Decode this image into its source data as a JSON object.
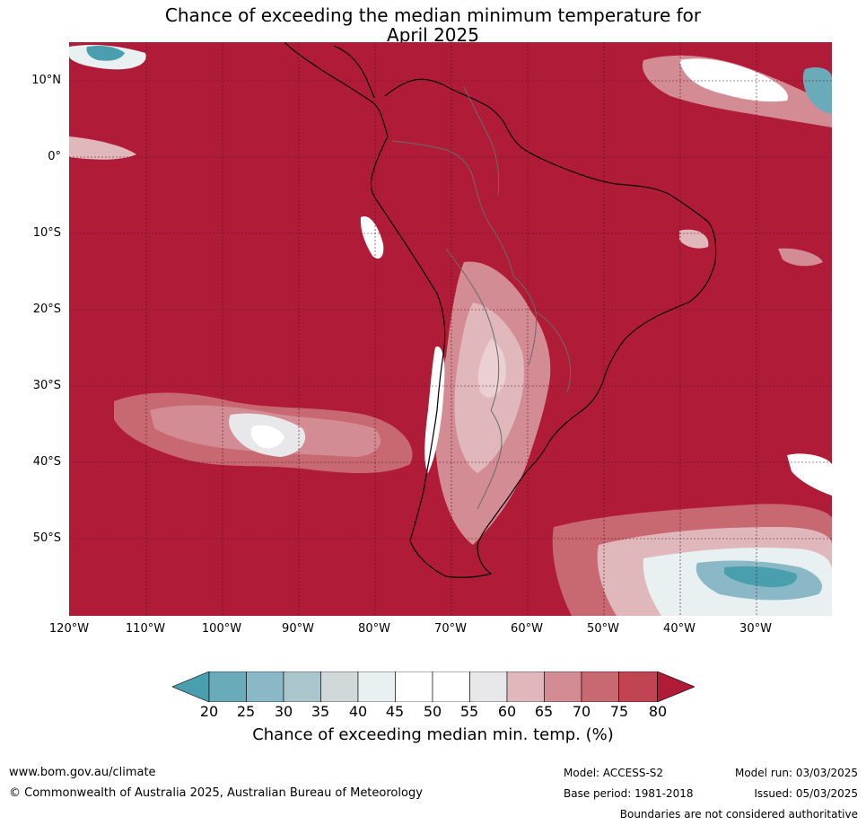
{
  "title_line1": "Chance of exceeding the median minimum temperature for",
  "title_line2": "April 2025",
  "lat_ticks": [
    "10°N",
    "0°",
    "10°S",
    "20°S",
    "30°S",
    "40°S",
    "50°S"
  ],
  "lon_ticks": [
    "120°W",
    "110°W",
    "100°W",
    "90°W",
    "80°W",
    "70°W",
    "60°W",
    "50°W",
    "40°W",
    "30°W"
  ],
  "colorbar": {
    "labels": [
      "20",
      "25",
      "30",
      "35",
      "40",
      "45",
      "50",
      "55",
      "60",
      "65",
      "70",
      "75",
      "80"
    ],
    "colors": [
      "#4a9fae",
      "#6aabba",
      "#8ab8c6",
      "#aac6cc",
      "#d0d8da",
      "#e8f0f2",
      "#ffffff",
      "#ffffff",
      "#e8e8ea",
      "#e0b8bc",
      "#d48c94",
      "#c86870",
      "#c04452",
      "#b01c38"
    ],
    "title": "Chance of exceeding median min. temp. (%)"
  },
  "footer": {
    "website": "www.bom.gov.au/climate",
    "copyright": "© Commonwealth of Australia 2025, Australian Bureau of Meteorology",
    "model": "Model: ACCESS-S2",
    "base_period": "Base period: 1981-2018",
    "model_run": "Model run: 03/03/2025",
    "issued": "Issued: 05/03/2025",
    "disclaimer": "Boundaries are not considered authoritative"
  }
}
